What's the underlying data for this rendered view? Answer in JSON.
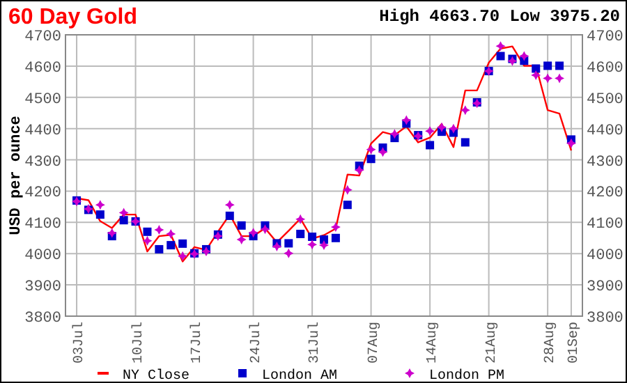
{
  "chart_data": {
    "type": "scatter",
    "title": "60 Day Gold",
    "subtitle": "High 4663.70 Low 3975.20",
    "ylabel": "USD per ounce",
    "categories": [
      "03Jul",
      null,
      null,
      null,
      null,
      "10Jul",
      null,
      null,
      null,
      null,
      "17Jul",
      null,
      null,
      null,
      null,
      "24Jul",
      null,
      null,
      null,
      null,
      "31Jul",
      null,
      null,
      null,
      null,
      "07Aug",
      null,
      null,
      null,
      null,
      "14Aug",
      null,
      null,
      null,
      null,
      "21Aug",
      null,
      null,
      null,
      null,
      "28Aug",
      null,
      "01Sep"
    ],
    "ylim": [
      3800,
      4700
    ],
    "yticks": [
      3800,
      3900,
      4000,
      4100,
      4200,
      4300,
      4400,
      4500,
      4600,
      4700
    ],
    "y2lim": [
      3800,
      4700
    ],
    "y2ticks": [
      3800,
      3900,
      4000,
      4100,
      4200,
      4300,
      4400,
      4500,
      4600,
      4700
    ],
    "grid": true,
    "legend": "bottom",
    "series": [
      {
        "name": "NY Close",
        "type": "line",
        "line_style": "solid",
        "marker": "none",
        "color": "#ff0000",
        "values": [
          4177,
          4171,
          4104,
          4082,
          4125,
          4125,
          4007,
          4056,
          4060,
          3975,
          4021,
          4012,
          4070,
          4125,
          4056,
          4056,
          4081,
          4036,
          4073,
          4112,
          4048,
          4059,
          4080,
          4253,
          4250,
          4352,
          4389,
          4379,
          4407,
          4356,
          4371,
          4415,
          4341,
          4522,
          4522,
          4611,
          4656,
          4663,
          4601,
          4601,
          4459,
          4448,
          4330
        ]
      },
      {
        "name": "London AM",
        "marker": "square",
        "color": "#0000cc",
        "values": [
          4170,
          4140,
          4125,
          4056,
          4107,
          4103,
          4070,
          4014,
          4027,
          4032,
          4001,
          4014,
          4061,
          4121,
          4090,
          4056,
          4090,
          4033,
          4033,
          4063,
          4054,
          4045,
          4050,
          4156,
          4281,
          4303,
          4339,
          4370,
          4416,
          4379,
          4347,
          4390,
          4387,
          4356,
          4484,
          4584,
          4632,
          4623,
          4617,
          4592,
          4601,
          4601,
          4365
        ]
      },
      {
        "name": "London PM",
        "marker": "cross",
        "color": "#cc00cc",
        "values": [
          4167,
          4143,
          4156,
          4066,
          4131,
          4103,
          4041,
          4076,
          4063,
          3992,
          3999,
          4007,
          4056,
          4156,
          4045,
          4067,
          4078,
          4023,
          4001,
          4110,
          4029,
          4027,
          4085,
          4204,
          4267,
          4333,
          4325,
          4383,
          4427,
          4376,
          4392,
          4404,
          4400,
          4459,
          4481,
          4584,
          4664,
          4616,
          4632,
          4571,
          4561,
          4561,
          4353
        ]
      }
    ]
  }
}
